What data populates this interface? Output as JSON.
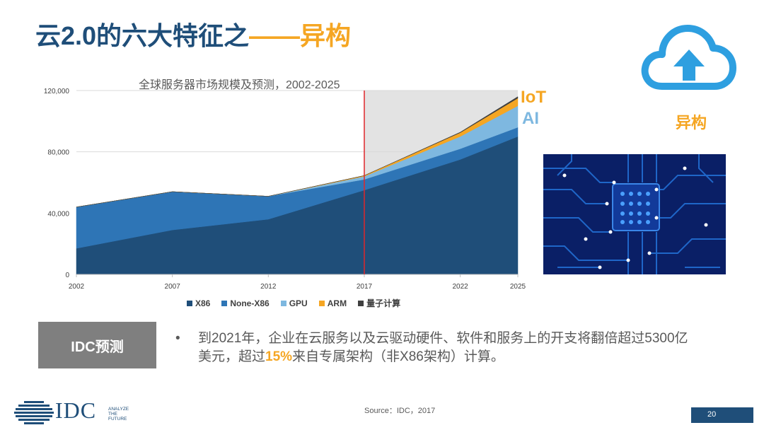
{
  "slide": {
    "title_main": "云2.0的六大特征之",
    "title_dash": "——",
    "title_accent": "异构",
    "side_label": "异构",
    "iot_label": "IoT",
    "ai_label": "AI",
    "idc_box": "IDC预测",
    "bullet_symbol": "•",
    "bullet_part1": "到2021年，企业在云服务以及云驱动硬件、软件和服务上的开支将翻倍超过5300亿美元，超过",
    "bullet_highlight": "15%",
    "bullet_part2": "来自专属架构（非X86架构）计算。",
    "source": "Source：IDC，2017",
    "page_number": "20",
    "logo_text": "IDC",
    "logo_tagline_1": "ANALYZE",
    "logo_tagline_2": "THE",
    "logo_tagline_3": "FUTURE",
    "colors": {
      "navy": "#1f4e79",
      "orange": "#f5a623",
      "gray": "#7f7f7f"
    }
  },
  "chart_data": {
    "type": "area",
    "stacked": true,
    "title": "全球服务器市场规模及预测，2002-2025",
    "x": [
      2002,
      2007,
      2012,
      2017,
      2022,
      2025
    ],
    "x_tick_labels": [
      "2002",
      "2007",
      "2012",
      "2017",
      "2022",
      "2025"
    ],
    "y_tick_values": [
      0,
      40000,
      80000,
      120000
    ],
    "y_tick_labels": [
      "0",
      "40,000",
      "80,000",
      "120,000"
    ],
    "ylim": [
      0,
      120000
    ],
    "forecast_start": 2017,
    "series": [
      {
        "name": "X86",
        "color": "#1f4e79",
        "values": [
          17000,
          29000,
          36000,
          55000,
          75000,
          90000
        ]
      },
      {
        "name": "None-X86",
        "color": "#2e75b6",
        "values": [
          27000,
          25000,
          15000,
          7000,
          7000,
          6000
        ]
      },
      {
        "name": "GPU",
        "color": "#7eb8e0",
        "values": [
          0,
          0,
          0,
          2000,
          8000,
          14000
        ]
      },
      {
        "name": "ARM",
        "color": "#f5a623",
        "values": [
          0,
          0,
          0,
          500,
          2500,
          5000
        ]
      },
      {
        "name": "量子计算",
        "color": "#404040",
        "values": [
          0,
          0,
          0,
          0,
          300,
          1000
        ]
      }
    ]
  }
}
